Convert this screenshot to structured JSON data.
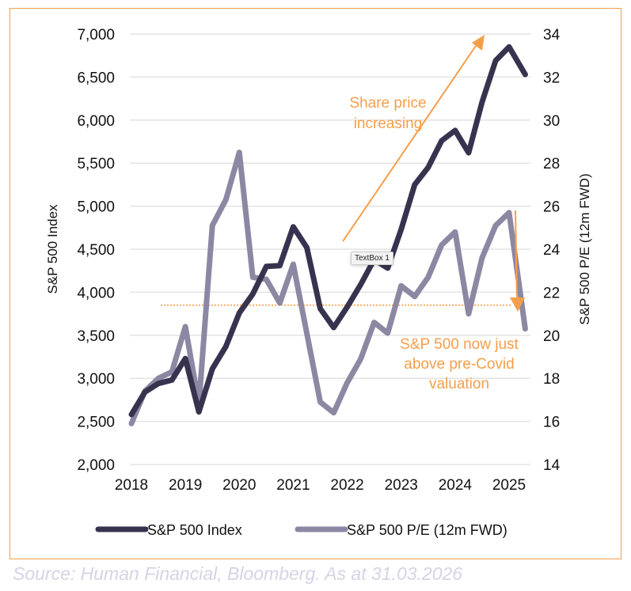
{
  "colors": {
    "index_line": "#37334f",
    "pe_line": "#8c88a3",
    "annotation": "#f59e4a",
    "grid": "#e3e3e3",
    "frame": "#f59e4a",
    "source": "#d6d3e4"
  },
  "tooltip": {
    "label": "TextBox 1"
  },
  "source_note": "Source: Human Financial, Bloomberg. As at 31.03.2026",
  "chart_data": {
    "type": "line",
    "title": "",
    "x_tick_labels": [
      "2018",
      "2019",
      "2020",
      "2021",
      "2022",
      "2023",
      "2024",
      "2025"
    ],
    "x_ticks": [
      2018,
      2019,
      2020,
      2021,
      2022,
      2023,
      2024,
      2025
    ],
    "xlim": [
      2018,
      2025.75
    ],
    "ylabel": "S&P 500 Index",
    "y2label": "S&P 500 P/E (12m FWD)",
    "ylim": [
      2000,
      7000
    ],
    "y2lim": [
      14,
      34
    ],
    "y_tick_labels": [
      "2,000",
      "2,500",
      "3,000",
      "3,500",
      "4,000",
      "4,500",
      "5,000",
      "5,500",
      "6,000",
      "6,500",
      "7,000"
    ],
    "y_ticks": [
      2000,
      2500,
      3000,
      3500,
      4000,
      4500,
      5000,
      5500,
      6000,
      6500,
      7000
    ],
    "y2_tick_labels": [
      "14",
      "16",
      "18",
      "20",
      "22",
      "24",
      "26",
      "28",
      "30",
      "32",
      "34"
    ],
    "y2_ticks": [
      14,
      16,
      18,
      20,
      22,
      24,
      26,
      28,
      30,
      32,
      34
    ],
    "grid": true,
    "legend_position": "bottom",
    "x": [
      2018.0,
      2018.25,
      2018.5,
      2018.75,
      2019.0,
      2019.25,
      2019.5,
      2019.75,
      2020.0,
      2020.25,
      2020.5,
      2020.75,
      2021.0,
      2021.25,
      2021.5,
      2021.75,
      2022.0,
      2022.25,
      2022.5,
      2022.75,
      2023.0,
      2023.25,
      2023.5,
      2023.75,
      2024.0,
      2024.25,
      2024.5,
      2024.75,
      2025.0,
      2025.3
    ],
    "series": [
      {
        "name": "S&P 500 Index",
        "axis": "left",
        "values": [
          2580,
          2840,
          2940,
          2980,
          3230,
          2610,
          3110,
          3370,
          3760,
          3980,
          4300,
          4310,
          4760,
          4520,
          3810,
          3590,
          3830,
          4090,
          4380,
          4280,
          4730,
          5250,
          5450,
          5760,
          5880,
          5620,
          6210,
          6690,
          6850,
          6530
        ]
      },
      {
        "name": "S&P 500 P/E (12m FWD)",
        "axis": "right",
        "values": [
          15.9,
          17.4,
          18.0,
          18.3,
          20.4,
          16.8,
          25.1,
          26.3,
          28.5,
          22.7,
          22.6,
          21.5,
          23.3,
          20.1,
          16.9,
          16.4,
          17.8,
          18.9,
          20.6,
          20.1,
          22.3,
          21.8,
          22.7,
          24.2,
          24.8,
          21.0,
          23.6,
          25.1,
          25.7,
          20.3
        ]
      }
    ],
    "annotations": [
      {
        "text_lines": [
          "Share price",
          "increasing"
        ],
        "type": "arrow-up-right"
      },
      {
        "text_lines": [
          "S&P 500 now just",
          "above pre-Covid",
          "valuation"
        ],
        "type": "arrow-down"
      },
      {
        "type": "reference-line-dotted",
        "y2_value": 21.4,
        "label": "pre-Covid valuation level"
      }
    ]
  }
}
